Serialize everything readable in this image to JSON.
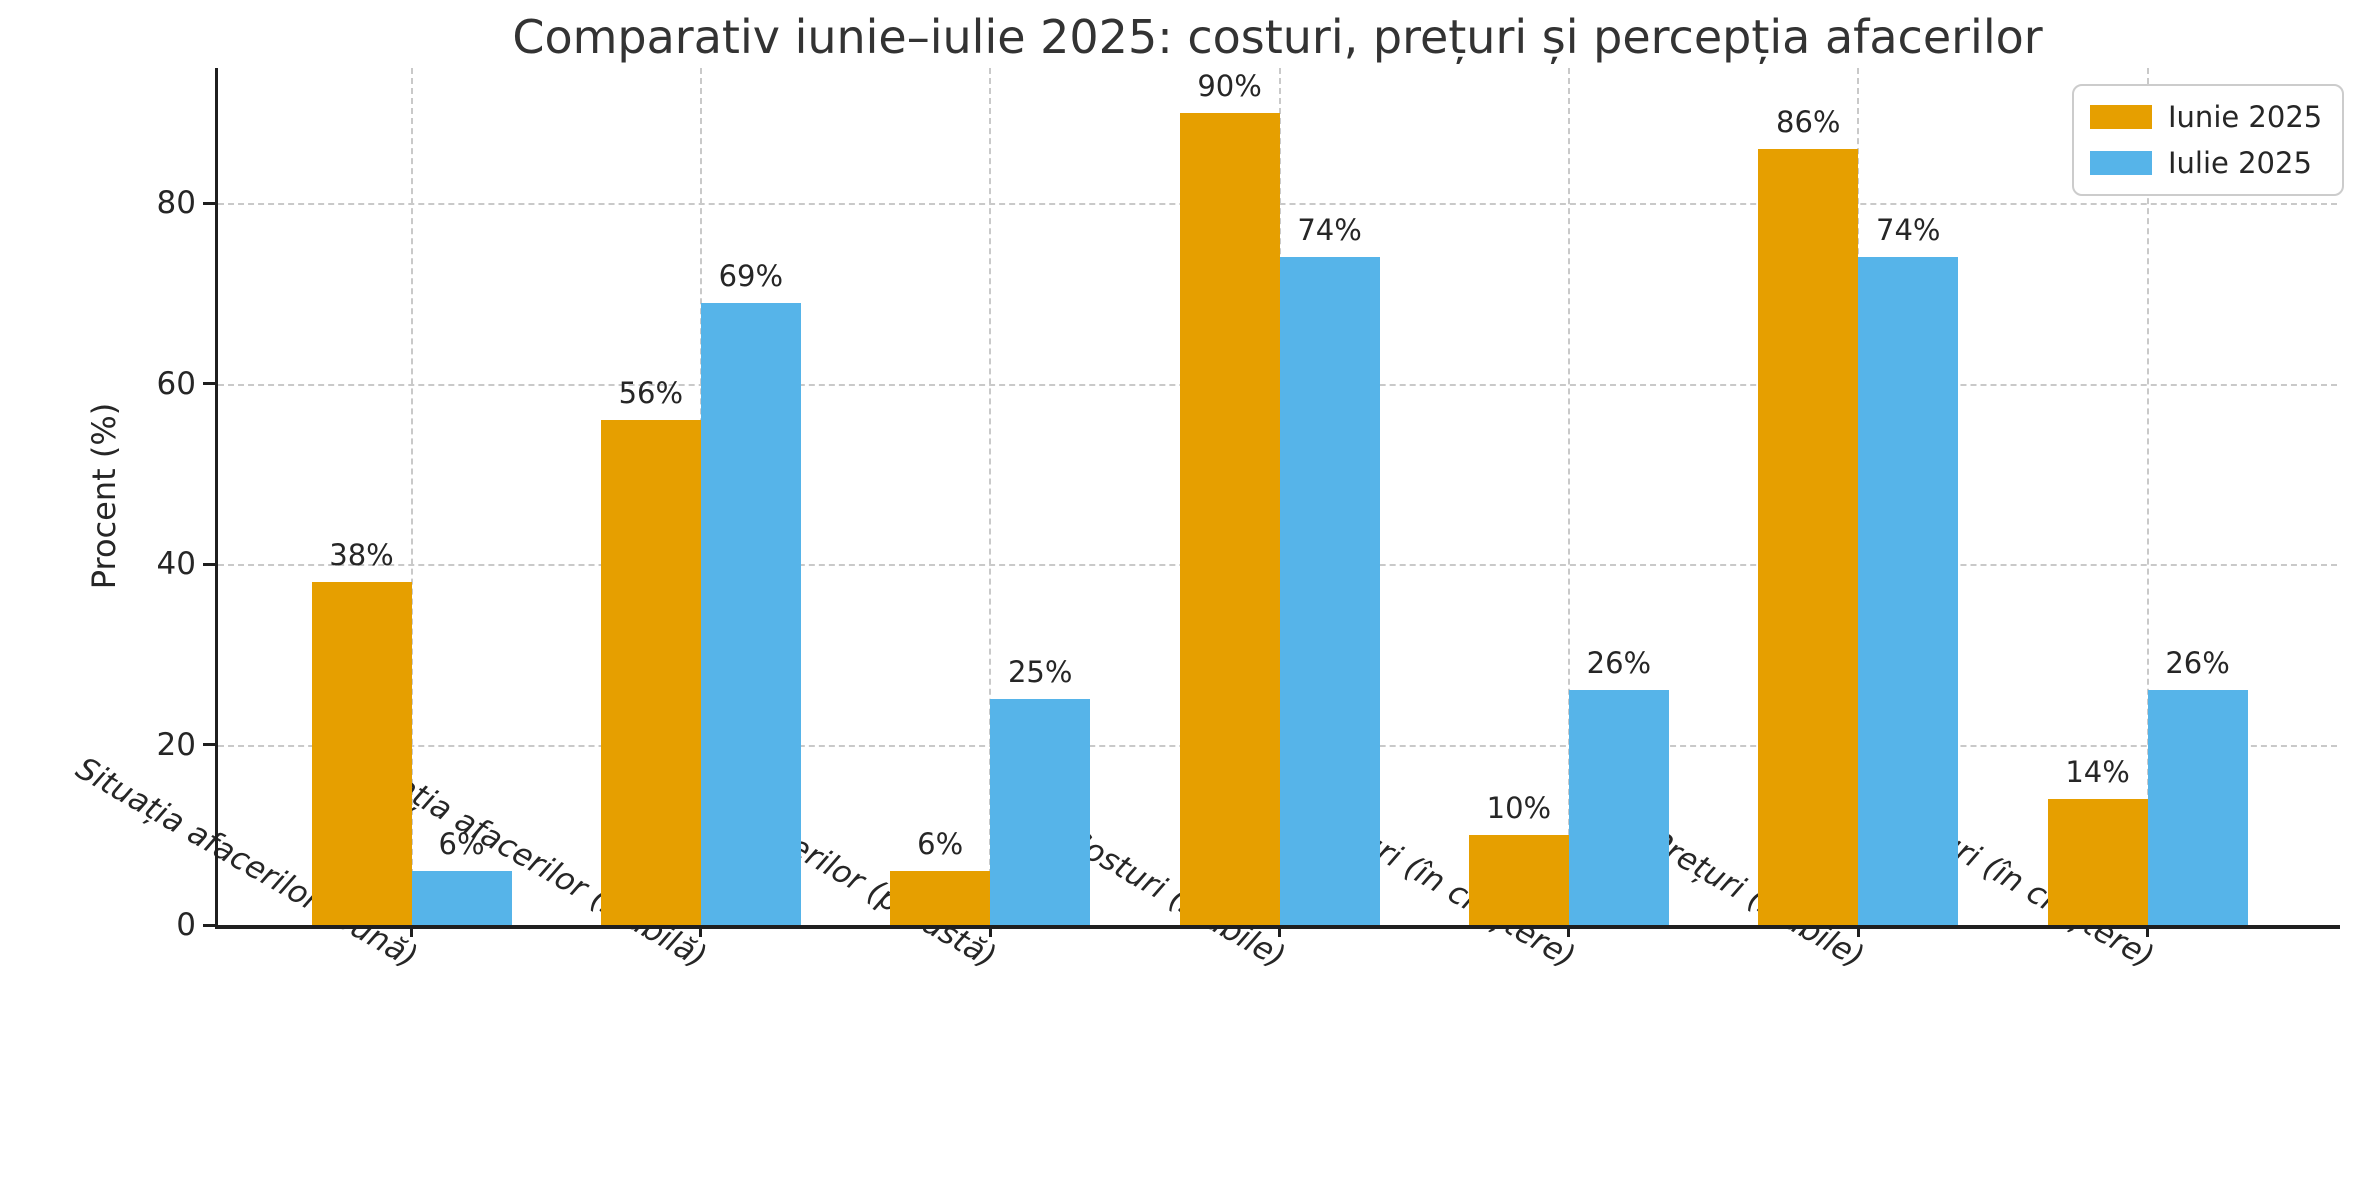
{
  "chart_data": {
    "type": "bar",
    "title": "Comparativ iunie–iulie 2025: costuri, prețuri și percepția afacerilor",
    "xlabel": "",
    "ylabel": "Procent (%)",
    "categories": [
      "Situația afacerilor (bună)",
      "Situația afacerilor (stabilă)",
      "Situația afacerilor (proastă)",
      "Costuri (stabile)",
      "Costuri (în creștere)",
      "Prețuri (stabile)",
      "Prețuri (în creștere)"
    ],
    "series": [
      {
        "name": "Iunie 2025",
        "color": "#E69F00",
        "values": [
          38,
          56,
          6,
          90,
          10,
          86,
          14
        ]
      },
      {
        "name": "Iulie 2025",
        "color": "#56B4E9",
        "values": [
          6,
          69,
          25,
          74,
          26,
          74,
          26
        ]
      }
    ],
    "value_label_suffix": "%",
    "ylim": [
      0,
      95
    ],
    "yticks": [
      0,
      20,
      40,
      60,
      80
    ],
    "grid": "dashed horizontal and vertical",
    "legend_position": "upper right",
    "xtick_style": "italic, rotated 30deg",
    "colors": {
      "grid": "#c9c9c9",
      "spine": "#1f1f1f",
      "text": "#262626",
      "title": "#333333",
      "background": "#ffffff"
    }
  }
}
